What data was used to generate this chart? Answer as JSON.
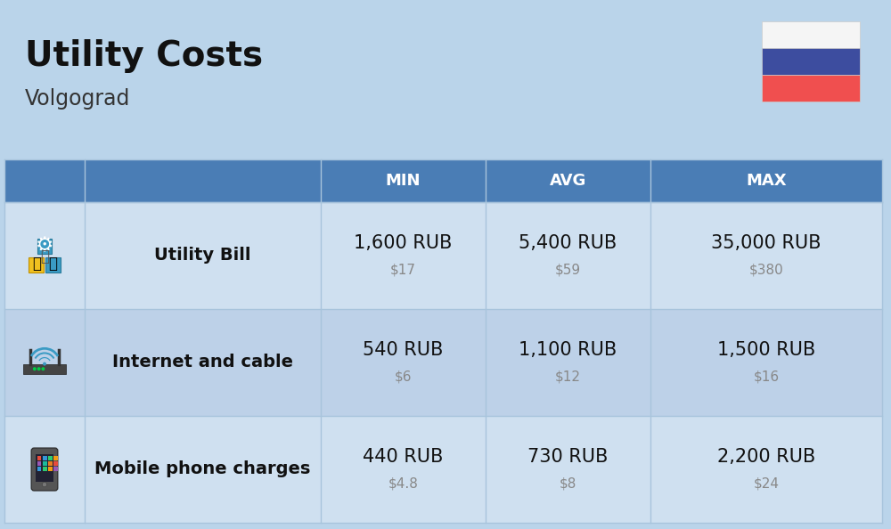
{
  "title": "Utility Costs",
  "subtitle": "Volgograd",
  "bg_color": "#bad4ea",
  "header_bg_color": "#4a7db5",
  "header_text_color": "#ffffff",
  "row_bg_color_1": "#cfe0f0",
  "row_bg_color_2": "#bdd1e8",
  "col_header_labels": [
    "MIN",
    "AVG",
    "MAX"
  ],
  "rows": [
    {
      "label": "Utility Bill",
      "min_rub": "1,600 RUB",
      "min_usd": "$17",
      "avg_rub": "5,400 RUB",
      "avg_usd": "$59",
      "max_rub": "35,000 RUB",
      "max_usd": "$380",
      "icon": "utility"
    },
    {
      "label": "Internet and cable",
      "min_rub": "540 RUB",
      "min_usd": "$6",
      "avg_rub": "1,100 RUB",
      "avg_usd": "$12",
      "max_rub": "1,500 RUB",
      "max_usd": "$16",
      "icon": "internet"
    },
    {
      "label": "Mobile phone charges",
      "min_rub": "440 RUB",
      "min_usd": "$4.8",
      "avg_rub": "730 RUB",
      "avg_usd": "$8",
      "max_rub": "2,200 RUB",
      "max_usd": "$24",
      "icon": "mobile"
    }
  ],
  "flag_colors": [
    "#f5f5f5",
    "#3d4d9f",
    "#f04f4f"
  ],
  "rub_fontsize": 15,
  "usd_fontsize": 11,
  "label_fontsize": 14,
  "header_fontsize": 13
}
